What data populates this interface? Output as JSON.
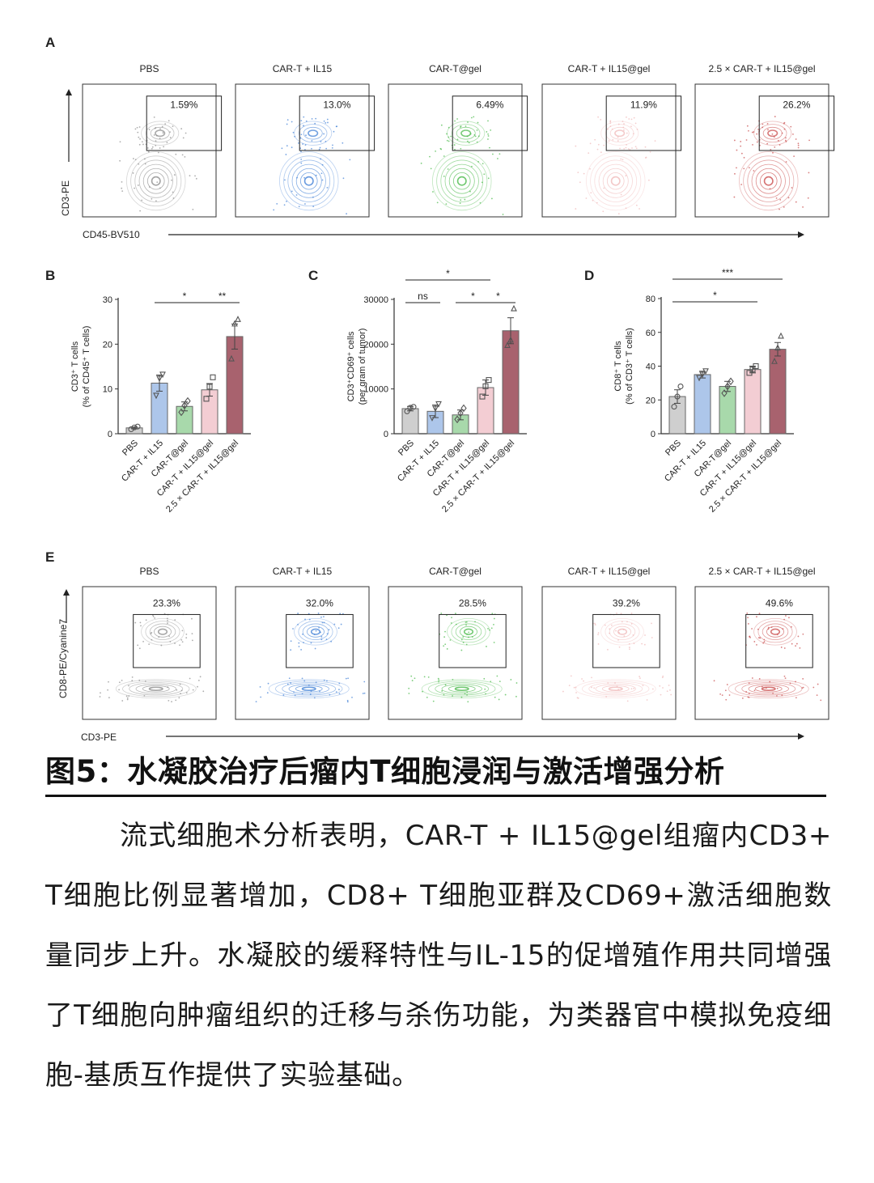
{
  "panels": {
    "A": {
      "label": "A",
      "x_axis": "CD45-BV510",
      "y_axis": "CD3-PE",
      "plots": [
        {
          "title": "PBS",
          "gate": "1.59%",
          "color": "#8a8a8a"
        },
        {
          "title": "CAR-T + IL15",
          "gate": "13.0%",
          "color": "#3f7fd6"
        },
        {
          "title": "CAR-T@gel",
          "gate": "6.49%",
          "color": "#46b846"
        },
        {
          "title": "CAR-T + IL15@gel",
          "gate": "11.9%",
          "color": "#f0b8b8"
        },
        {
          "title": "2.5 × CAR-T + IL15@gel",
          "gate": "26.2%",
          "color": "#c94a4a"
        }
      ]
    },
    "E": {
      "label": "E",
      "x_axis": "CD3-PE",
      "y_axis": "CD8-PE/Cyanine7",
      "plots": [
        {
          "title": "PBS",
          "gate": "23.3%",
          "color": "#8a8a8a"
        },
        {
          "title": "CAR-T + IL15",
          "gate": "32.0%",
          "color": "#3f7fd6"
        },
        {
          "title": "CAR-T@gel",
          "gate": "28.5%",
          "color": "#46b846"
        },
        {
          "title": "CAR-T + IL15@gel",
          "gate": "39.2%",
          "color": "#f0b8b8"
        },
        {
          "title": "2.5 × CAR-T + IL15@gel",
          "gate": "49.6%",
          "color": "#c94a4a"
        }
      ]
    }
  },
  "chart_data": [
    {
      "panel": "B",
      "type": "bar",
      "categories": [
        "PBS",
        "CAR-T + IL15",
        "CAR-T@gel",
        "CAR-T + IL15@gel",
        "2.5 × CAR-T + IL15@gel"
      ],
      "values": [
        1.3,
        11.3,
        6.1,
        9.8,
        21.7
      ],
      "errors": [
        0.2,
        1.8,
        1.0,
        1.4,
        2.8
      ],
      "points": [
        [
          1.0,
          1.4,
          1.6
        ],
        [
          8.5,
          12.3,
          13.2
        ],
        [
          4.8,
          6.3,
          7.3
        ],
        [
          7.8,
          10.5,
          12.6
        ],
        [
          16.8,
          24.6,
          25.6
        ]
      ],
      "ylabel": "CD3⁺ T cells",
      "ylabel2": "(% of CD45⁺ T cells)",
      "ylim": [
        0,
        30
      ],
      "yticks": [
        "0",
        "10",
        "20",
        "30"
      ],
      "colors": [
        "#cfcfcf",
        "#adc6ea",
        "#a8d9ab",
        "#f3cdd3",
        "#a8626e"
      ],
      "markers": [
        "circle",
        "triangle-down",
        "diamond",
        "square",
        "triangle-up"
      ],
      "significance": [
        {
          "from": 1,
          "to": 3,
          "label": "*",
          "level": 0
        },
        {
          "from": 3,
          "to": 4,
          "label": "**",
          "level": 0
        }
      ]
    },
    {
      "panel": "C",
      "type": "bar",
      "categories": [
        "PBS",
        "CAR-T + IL15",
        "CAR-T@gel",
        "CAR-T + IL15@gel",
        "2.5 × CAR-T + IL15@gel"
      ],
      "values": [
        5600,
        5000,
        4200,
        10300,
        23000
      ],
      "errors": [
        500,
        1400,
        1100,
        1700,
        2900
      ],
      "points": [
        [
          5000,
          5800,
          6000
        ],
        [
          3500,
          5600,
          6600
        ],
        [
          3200,
          4600,
          5700
        ],
        [
          8300,
          10600,
          12000
        ],
        [
          19800,
          21000,
          28000
        ]
      ],
      "ylabel": "CD3⁺CD69⁺ cells",
      "ylabel2": "(per gram of tumor)",
      "ylim": [
        0,
        30000
      ],
      "yticks": [
        "0",
        "10000",
        "20000",
        "30000"
      ],
      "colors": [
        "#cfcfcf",
        "#adc6ea",
        "#a8d9ab",
        "#f3cdd3",
        "#a8626e"
      ],
      "markers": [
        "circle",
        "triangle-down",
        "diamond",
        "square",
        "triangle-up"
      ],
      "significance": [
        {
          "from": 0,
          "to": 1,
          "label": "ns",
          "level": 0
        },
        {
          "from": 2,
          "to": 3,
          "label": "*",
          "level": 0
        },
        {
          "from": 3,
          "to": 4,
          "label": "*",
          "level": 0
        },
        {
          "from": 0,
          "to": 3,
          "label": "*",
          "level": 1
        }
      ]
    },
    {
      "panel": "D",
      "type": "bar",
      "categories": [
        "PBS",
        "CAR-T + IL15",
        "CAR-T@gel",
        "CAR-T + IL15@gel",
        "2.5 × CAR-T + IL15@gel"
      ],
      "values": [
        22,
        35,
        28,
        38,
        50
      ],
      "errors": [
        4,
        2,
        3,
        2,
        4
      ],
      "points": [
        [
          16,
          22,
          28
        ],
        [
          33,
          35,
          37
        ],
        [
          24,
          28,
          31
        ],
        [
          36,
          38,
          40
        ],
        [
          43,
          51,
          58
        ]
      ],
      "ylabel": "CD8⁺ T cells",
      "ylabel2": "(% of CD3⁺ T cells)",
      "ylim": [
        0,
        80
      ],
      "yticks": [
        "0",
        "20",
        "40",
        "60",
        "80"
      ],
      "colors": [
        "#cfcfcf",
        "#adc6ea",
        "#a8d9ab",
        "#f3cdd3",
        "#a8626e"
      ],
      "markers": [
        "circle",
        "triangle-down",
        "diamond",
        "square",
        "triangle-up"
      ],
      "significance": [
        {
          "from": 0,
          "to": 3,
          "label": "*",
          "level": 0
        },
        {
          "from": 0,
          "to": 4,
          "label": "***",
          "level": 1
        }
      ]
    }
  ],
  "caption": {
    "title": "图5：水凝胶治疗后瘤内T细胞浸润与激活增强分析",
    "body": "流式细胞术分析表明，CAR-T + IL15@gel组瘤内CD3+ T细胞比例显著增加，CD8+ T细胞亚群及CD69+激活细胞数量同步上升。水凝胶的缓释特性与IL-15的促增殖作用共同增强了T细胞向肿瘤组织的迁移与杀伤功能，为类器官中模拟免疫细胞-基质互作提供了实验基础。"
  }
}
